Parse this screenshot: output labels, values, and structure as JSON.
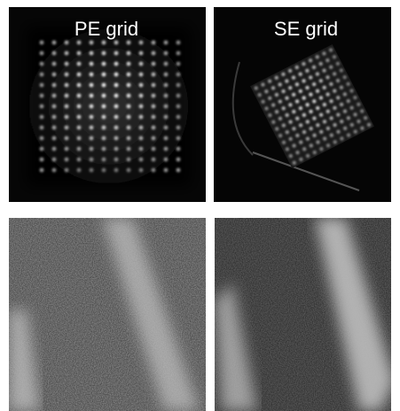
{
  "panels": [
    {
      "label": "PE grid"
    },
    {
      "label": "SE grid"
    }
  ]
}
